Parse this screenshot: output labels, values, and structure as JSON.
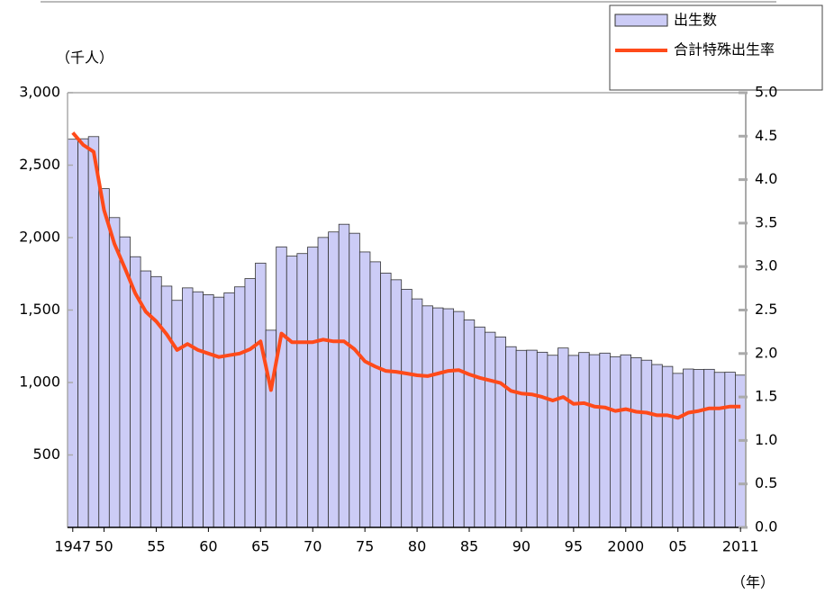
{
  "chart_data": {
    "type": "bar_line",
    "y_label": "（千人）",
    "x_label": "（年）",
    "categories": [
      "1947",
      null,
      null,
      "50",
      null,
      null,
      null,
      null,
      "55",
      null,
      null,
      null,
      null,
      "60",
      null,
      null,
      null,
      null,
      "65",
      null,
      null,
      null,
      null,
      "70",
      null,
      null,
      null,
      null,
      "75",
      null,
      null,
      null,
      null,
      "80",
      null,
      null,
      null,
      null,
      "85",
      null,
      null,
      null,
      null,
      "90",
      null,
      null,
      null,
      null,
      "95",
      null,
      null,
      null,
      null,
      "2000",
      null,
      null,
      null,
      null,
      "05",
      null,
      null,
      null,
      null,
      null,
      "2011"
    ],
    "series": [
      {
        "name": "出生数",
        "type": "bar",
        "color": "#ccccf6",
        "values": [
          2679,
          2682,
          2697,
          2338,
          2138,
          2005,
          1868,
          1770,
          1731,
          1665,
          1567,
          1653,
          1626,
          1606,
          1589,
          1619,
          1660,
          1717,
          1824,
          1361,
          1936,
          1872,
          1890,
          1934,
          2001,
          2039,
          2092,
          2030,
          1901,
          1833,
          1755,
          1709,
          1643,
          1577,
          1529,
          1515,
          1509,
          1490,
          1432,
          1383,
          1347,
          1314,
          1247,
          1222,
          1223,
          1209,
          1188,
          1238,
          1187,
          1207,
          1192,
          1203,
          1178,
          1191,
          1171,
          1154,
          1124,
          1111,
          1063,
          1093,
          1090,
          1091,
          1070,
          1071,
          1051
        ]
      },
      {
        "name": "合計特殊出生率",
        "type": "line",
        "axis": "y2",
        "color": "#ff4a1a",
        "values": [
          4.54,
          4.4,
          4.32,
          3.65,
          3.26,
          2.98,
          2.69,
          2.48,
          2.37,
          2.22,
          2.04,
          2.11,
          2.04,
          2.0,
          1.96,
          1.98,
          2.0,
          2.05,
          2.14,
          1.58,
          2.23,
          2.13,
          2.13,
          2.13,
          2.16,
          2.14,
          2.14,
          2.05,
          1.91,
          1.85,
          1.8,
          1.79,
          1.77,
          1.75,
          1.74,
          1.77,
          1.8,
          1.81,
          1.76,
          1.72,
          1.69,
          1.66,
          1.57,
          1.54,
          1.53,
          1.5,
          1.46,
          1.5,
          1.42,
          1.43,
          1.39,
          1.38,
          1.34,
          1.36,
          1.33,
          1.32,
          1.29,
          1.29,
          1.26,
          1.32,
          1.34,
          1.37,
          1.37,
          1.39,
          1.39
        ]
      }
    ],
    "ylim": [
      0,
      3000
    ],
    "yticks": [
      500,
      {
        "value": 1000,
        "label": "1,000"
      },
      {
        "value": 1500,
        "label": "1,500"
      },
      {
        "value": 2000,
        "label": "2,000"
      },
      {
        "value": 2500,
        "label": "2,500"
      },
      {
        "value": 3000,
        "label": "3,000"
      }
    ],
    "y2lim": [
      0,
      5
    ],
    "y2ticks": [
      {
        "value": 0,
        "label": "0.0"
      },
      0.5,
      {
        "value": 1,
        "label": "1.0"
      },
      1.5,
      {
        "value": 2,
        "label": "2.0"
      },
      2.5,
      {
        "value": 3,
        "label": "3.0"
      },
      3.5,
      {
        "value": 4,
        "label": "4.0"
      },
      4.5,
      {
        "value": 5,
        "label": "5.0"
      }
    ]
  }
}
